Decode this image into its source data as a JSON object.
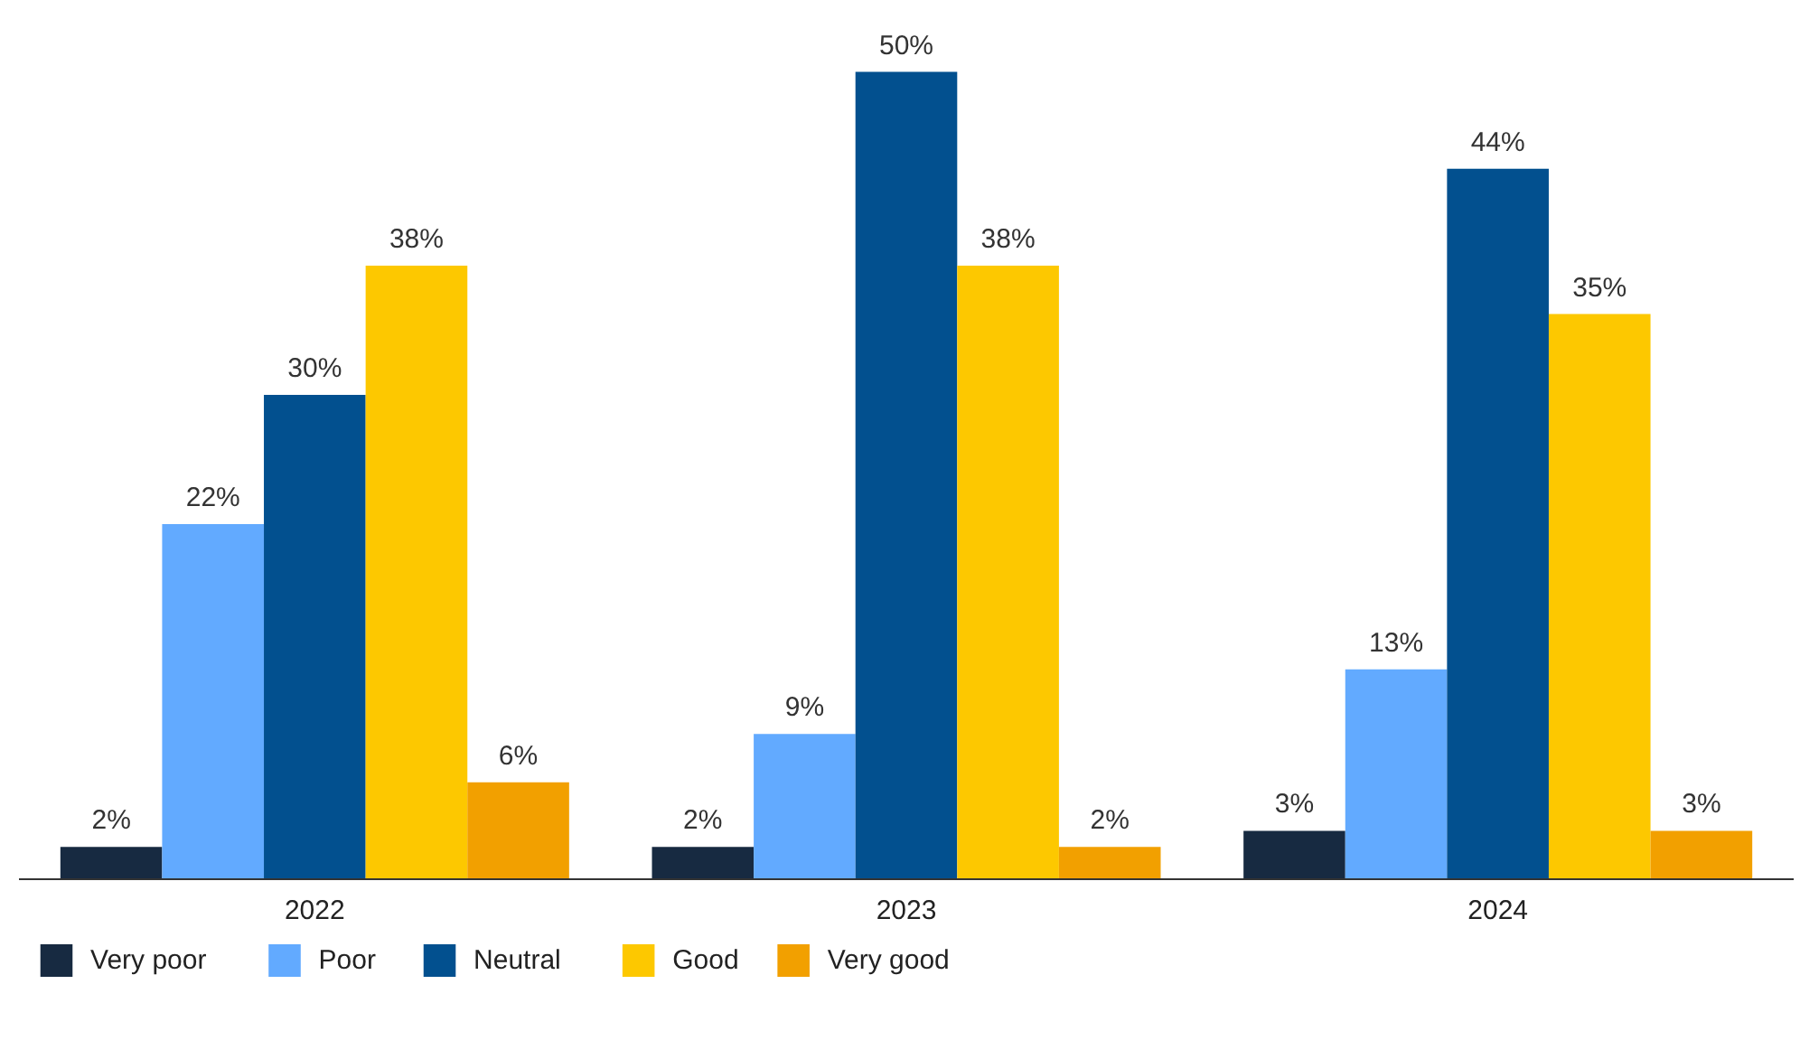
{
  "chart_data": {
    "type": "bar",
    "categories": [
      "2022",
      "2023",
      "2024"
    ],
    "series": [
      {
        "name": "Very poor",
        "color": "#172a41",
        "values": [
          2,
          2,
          3
        ],
        "value_labels": [
          "2%",
          "2%",
          "3%"
        ]
      },
      {
        "name": "Poor",
        "color": "#62aaff",
        "values": [
          22,
          9,
          13
        ],
        "value_labels": [
          "22%",
          "9%",
          "13%"
        ]
      },
      {
        "name": "Neutral",
        "color": "#02508f",
        "values": [
          30,
          50,
          44
        ],
        "value_labels": [
          "30%",
          "50%",
          "44%"
        ]
      },
      {
        "name": "Good",
        "color": "#fdc800",
        "values": [
          38,
          38,
          35
        ],
        "value_labels": [
          "38%",
          "38%",
          "35%"
        ]
      },
      {
        "name": "Very good",
        "color": "#f2a000",
        "values": [
          6,
          2,
          3
        ],
        "value_labels": [
          "6%",
          "2%",
          "3%"
        ]
      }
    ],
    "legend": "bottom",
    "grid": false
  }
}
